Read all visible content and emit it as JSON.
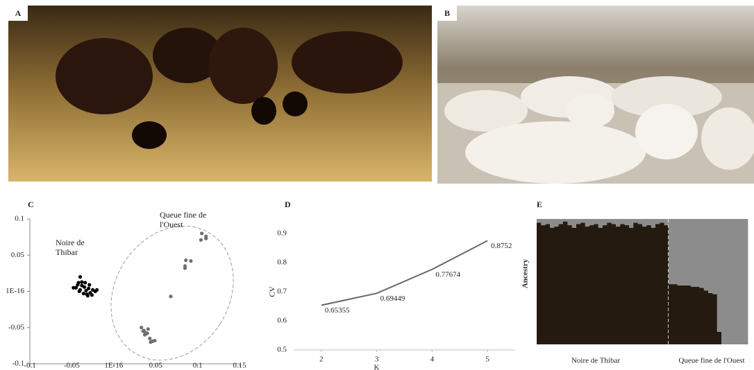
{
  "photos": [
    {
      "label": "A"
    },
    {
      "label": "B"
    }
  ],
  "chart_data": [
    {
      "type": "scatter",
      "label": "C",
      "xlim": [
        -0.1,
        0.15
      ],
      "xticks": [
        -0.1,
        -0.05,
        {
          "value": 1e-16,
          "label": "1E-16"
        },
        0.05,
        0.1,
        0.15
      ],
      "ylim": [
        -0.1,
        0.1
      ],
      "yticks": [
        -0.1,
        -0.05,
        {
          "value": 1e-16,
          "label": "1E-16"
        },
        0.05,
        0.1
      ],
      "series": [
        {
          "name": "Noire de Thibar",
          "color": "#000000",
          "x": [
            -0.04,
            -0.042,
            -0.038,
            -0.045,
            -0.035,
            -0.03,
            -0.033,
            -0.04,
            -0.048,
            -0.025,
            -0.028,
            -0.036,
            -0.031,
            -0.026,
            -0.022,
            -0.038,
            -0.043,
            -0.029,
            -0.034,
            -0.02,
            -0.032,
            -0.041
          ],
          "y": [
            0.02,
            0.012,
            0.008,
            0.005,
            0.006,
            0.004,
            0.001,
            0.002,
            0.005,
            0.002,
            -0.002,
            -0.003,
            -0.006,
            -0.005,
            0.0,
            0.013,
            0.009,
            0.009,
            0.012,
            0.002,
            -0.004,
            0.0
          ]
        },
        {
          "name": "Queue fine de l'Ouest",
          "color": "#6e6e6e",
          "x": [
            0.105,
            0.11,
            0.104,
            0.11,
            0.086,
            0.092,
            0.085,
            0.085,
            0.068,
            0.033,
            0.036,
            0.038,
            0.041,
            0.04,
            0.035,
            0.043,
            0.046,
            0.049,
            0.044,
            0.037
          ],
          "y": [
            0.08,
            0.076,
            0.071,
            0.073,
            0.043,
            0.042,
            0.035,
            0.032,
            -0.007,
            -0.05,
            -0.054,
            -0.057,
            -0.052,
            -0.058,
            -0.055,
            -0.065,
            -0.069,
            -0.068,
            -0.07,
            -0.06
          ]
        }
      ]
    },
    {
      "type": "line",
      "label": "D",
      "xlabel": "K",
      "ylabel": "CV",
      "color": "#666666",
      "x": [
        2,
        3,
        4,
        5
      ],
      "values": [
        0.65355,
        0.69449,
        0.77674,
        0.8752
      ],
      "xlim": [
        1.5,
        5.5
      ],
      "xticks": [
        2,
        3,
        4,
        5
      ],
      "ylim": [
        0.5,
        0.9
      ],
      "yticks": [
        0.5,
        0.6,
        0.7,
        0.8,
        0.9
      ]
    },
    {
      "type": "stacked-bar",
      "label": "E",
      "ylabel": "Ancestry",
      "ylim": [
        0,
        1
      ],
      "groups": [
        {
          "label": "Noire de Thibar",
          "series": [
            {
              "color": "#241a0f",
              "values": [
                0.97,
                0.95,
                0.96,
                0.93,
                0.94,
                0.96,
                0.98,
                0.95,
                0.93,
                0.96,
                0.97,
                0.94,
                0.95,
                0.96,
                0.93,
                0.95,
                0.97,
                0.96,
                0.94,
                0.96,
                0.95,
                0.93,
                0.97,
                0.96,
                0.94,
                0.95,
                0.93,
                0.96,
                0.97,
                0.95
              ]
            },
            {
              "color": "#8c8c8c",
              "values": [
                0.03,
                0.05,
                0.04,
                0.07,
                0.06,
                0.04,
                0.02,
                0.05,
                0.07,
                0.04,
                0.03,
                0.06,
                0.05,
                0.04,
                0.07,
                0.05,
                0.03,
                0.04,
                0.06,
                0.04,
                0.05,
                0.07,
                0.03,
                0.04,
                0.06,
                0.05,
                0.07,
                0.04,
                0.03,
                0.05
              ]
            }
          ]
        },
        {
          "label": "Queue fine de l'Ouest",
          "series": [
            {
              "color": "#241a0f",
              "values": [
                0.48,
                0.48,
                0.47,
                0.47,
                0.47,
                0.46,
                0.46,
                0.45,
                0.43,
                0.41,
                0.4,
                0.1,
                0,
                0,
                0,
                0,
                0,
                0
              ]
            },
            {
              "color": "#8c8c8c",
              "values": [
                0.52,
                0.52,
                0.53,
                0.53,
                0.53,
                0.54,
                0.54,
                0.55,
                0.57,
                0.59,
                0.6,
                0.9,
                1,
                1,
                1,
                1,
                1,
                1
              ]
            }
          ]
        }
      ]
    }
  ]
}
